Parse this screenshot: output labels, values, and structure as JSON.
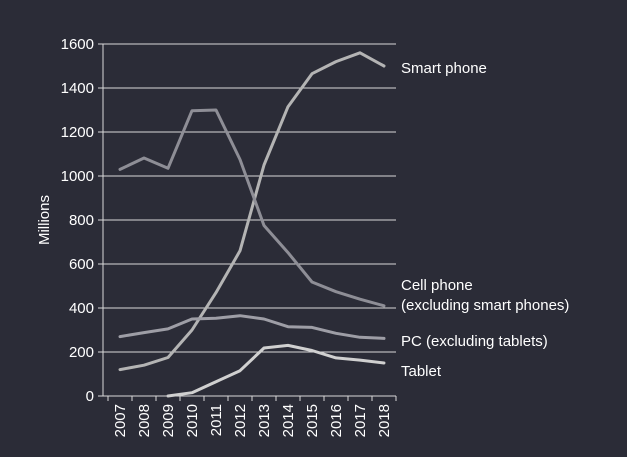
{
  "chart_data": {
    "type": "line",
    "title": "",
    "xlabel": "",
    "ylabel": "Millions",
    "x": [
      "2007",
      "2008",
      "2009",
      "2010",
      "2011",
      "2012",
      "2013",
      "2014",
      "2015",
      "2016",
      "2017",
      "2018"
    ],
    "ylim": [
      0,
      1600
    ],
    "yticks": [
      0,
      200,
      400,
      600,
      800,
      1000,
      1200,
      1400,
      1600
    ],
    "grid": true,
    "legend": "right-end labels",
    "series": [
      {
        "name": "Smart phone",
        "label_lines": [
          "Smart phone"
        ],
        "color": "#b4b4b4",
        "values": [
          120,
          140,
          175,
          300,
          470,
          660,
          1050,
          1315,
          1465,
          1520,
          1560,
          1500
        ]
      },
      {
        "name": "Cell phone (excluding smart phones)",
        "label_lines": [
          "Cell phone",
          "(excluding smart phones)"
        ],
        "color": "#8e8e96",
        "values": [
          1030,
          1082,
          1035,
          1297,
          1300,
          1075,
          775,
          652,
          518,
          474,
          440,
          410
        ]
      },
      {
        "name": "PC (excluding tablets)",
        "label_lines": [
          "PC (excluding tablets)"
        ],
        "color": "#9e9ea6",
        "values": [
          270,
          288,
          305,
          350,
          353,
          365,
          350,
          315,
          312,
          285,
          267,
          262
        ]
      },
      {
        "name": "Tablet",
        "label_lines": [
          "Tablet"
        ],
        "color": "#d0d0d0",
        "values": [
          null,
          null,
          0,
          15,
          65,
          115,
          218,
          230,
          207,
          173,
          163,
          150
        ]
      }
    ]
  }
}
